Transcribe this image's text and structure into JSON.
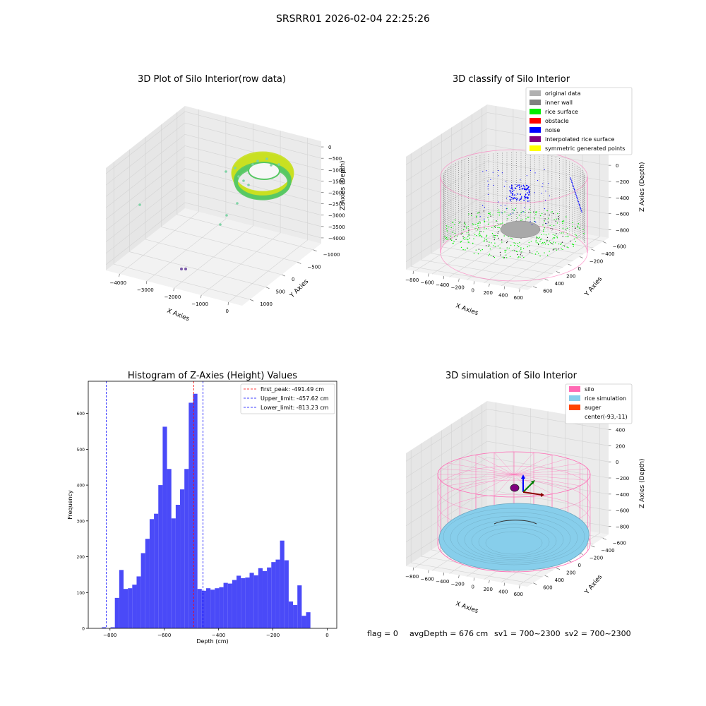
{
  "suptitle": "SRSRR01 2026-02-04 22:25:26",
  "footer": {
    "flag": "flag = 0",
    "avg_depth": "avgDepth = 676 cm",
    "sv1": "sv1 = 700~2300",
    "sv2": "sv2 = 700~2300"
  },
  "chart_data": [
    {
      "type": "scatter",
      "title": "3D Plot of Silo Interior(row data)",
      "xlabel": "X Axies",
      "ylabel": "Y Axies",
      "zlabel": "Z Axies (Depth)",
      "x_ticks": [
        "−4000",
        "−3000",
        "−2000",
        "−1000",
        "0"
      ],
      "y_ticks": [
        "1000",
        "500",
        "0",
        "−500",
        "−1000"
      ],
      "z_ticks": [
        "0",
        "−500",
        "−1000",
        "−1500",
        "−2000",
        "−2500",
        "−3000",
        "−3500",
        "−4000"
      ],
      "xlim": [
        -4300,
        300
      ],
      "ylim": [
        -1100,
        1100
      ],
      "zlim": [
        -4100,
        100
      ],
      "colors": {
        "surface": "#c9e021",
        "surface_edge": "#58c864",
        "outlier": "#7fd3a6",
        "low": "#7a5aa8"
      }
    },
    {
      "type": "scatter",
      "title": "3D classify of Silo Interior",
      "xlabel": "X Axies",
      "ylabel": "Y Axies",
      "zlabel": "Z Axies (Depth)",
      "x_ticks": [
        "−800",
        "−600",
        "−400",
        "−200",
        "0",
        "200",
        "400",
        "600"
      ],
      "y_ticks": [
        "600",
        "400",
        "200",
        "0",
        "−200",
        "−400",
        "−600"
      ],
      "z_ticks": [
        "400",
        "200",
        "0",
        "−200",
        "−400",
        "−600",
        "−800"
      ],
      "legend": [
        {
          "label": "original data",
          "color": "#b0b0b0"
        },
        {
          "label": "inner wall",
          "color": "#808080"
        },
        {
          "label": "rice surface",
          "color": "#00ee00"
        },
        {
          "label": "obstacle",
          "color": "#ff0000"
        },
        {
          "label": "noise",
          "color": "#0000ff"
        },
        {
          "label": "interpolated rice surface",
          "color": "#800080"
        },
        {
          "label": "symmetric generated points",
          "color": "#ffff00"
        }
      ],
      "legend_loc": "upper-right"
    },
    {
      "type": "bar",
      "title": "Histogram of Z-Axies (Height) Values",
      "xlabel": "Depth (cm)",
      "ylabel": "Frequency",
      "bin_start": -830,
      "bin_width": 16,
      "values": [
        3,
        0,
        3,
        85,
        163,
        110,
        112,
        122,
        145,
        210,
        250,
        305,
        320,
        400,
        563,
        445,
        307,
        345,
        388,
        445,
        630,
        655,
        110,
        105,
        112,
        108,
        112,
        115,
        127,
        125,
        135,
        147,
        140,
        142,
        155,
        148,
        168,
        160,
        170,
        185,
        192,
        245,
        190,
        75,
        65,
        120,
        35,
        45
      ],
      "xlim": [
        -880,
        35
      ],
      "ylim": [
        0,
        690
      ],
      "x_ticks": [
        {
          "v": -800,
          "t": "−800"
        },
        {
          "v": -600,
          "t": "−600"
        },
        {
          "v": -400,
          "t": "−400"
        },
        {
          "v": -200,
          "t": "−200"
        },
        {
          "v": 0,
          "t": "0"
        }
      ],
      "y_ticks": [
        0,
        100,
        200,
        300,
        400,
        500,
        600
      ],
      "bar_color": "#4a4af8",
      "vlines": [
        {
          "x": -491.49,
          "color": "#ff0000",
          "label": "first_peak: -491.49 cm"
        },
        {
          "x": -457.62,
          "color": "#0000ff",
          "label": "Upper_limit: -457.62 cm"
        },
        {
          "x": -813.23,
          "color": "#0000ff",
          "label": "Lower_limit: -813.23 cm"
        }
      ],
      "legend_loc": "upper-right"
    },
    {
      "type": "scatter",
      "title": "3D simulation of Silo Interior",
      "xlabel": "X Axies",
      "ylabel": "Y Axies",
      "zlabel": "Z Axies (Depth)",
      "x_ticks": [
        "−800",
        "−600",
        "−400",
        "−200",
        "0",
        "200",
        "400",
        "600"
      ],
      "y_ticks": [
        "600",
        "400",
        "200",
        "0",
        "−200",
        "−400",
        "−600"
      ],
      "z_ticks": [
        "400",
        "200",
        "0",
        "−200",
        "−400",
        "−600",
        "−800"
      ],
      "legend": [
        {
          "label": "silo",
          "color": "#ff69b4"
        },
        {
          "label": "rice simulation",
          "color": "#87ceeb"
        },
        {
          "label": "auger",
          "color": "#ff4500"
        },
        {
          "label": "center(-93,-11)",
          "color": ""
        }
      ],
      "legend_loc": "upper-right"
    }
  ]
}
